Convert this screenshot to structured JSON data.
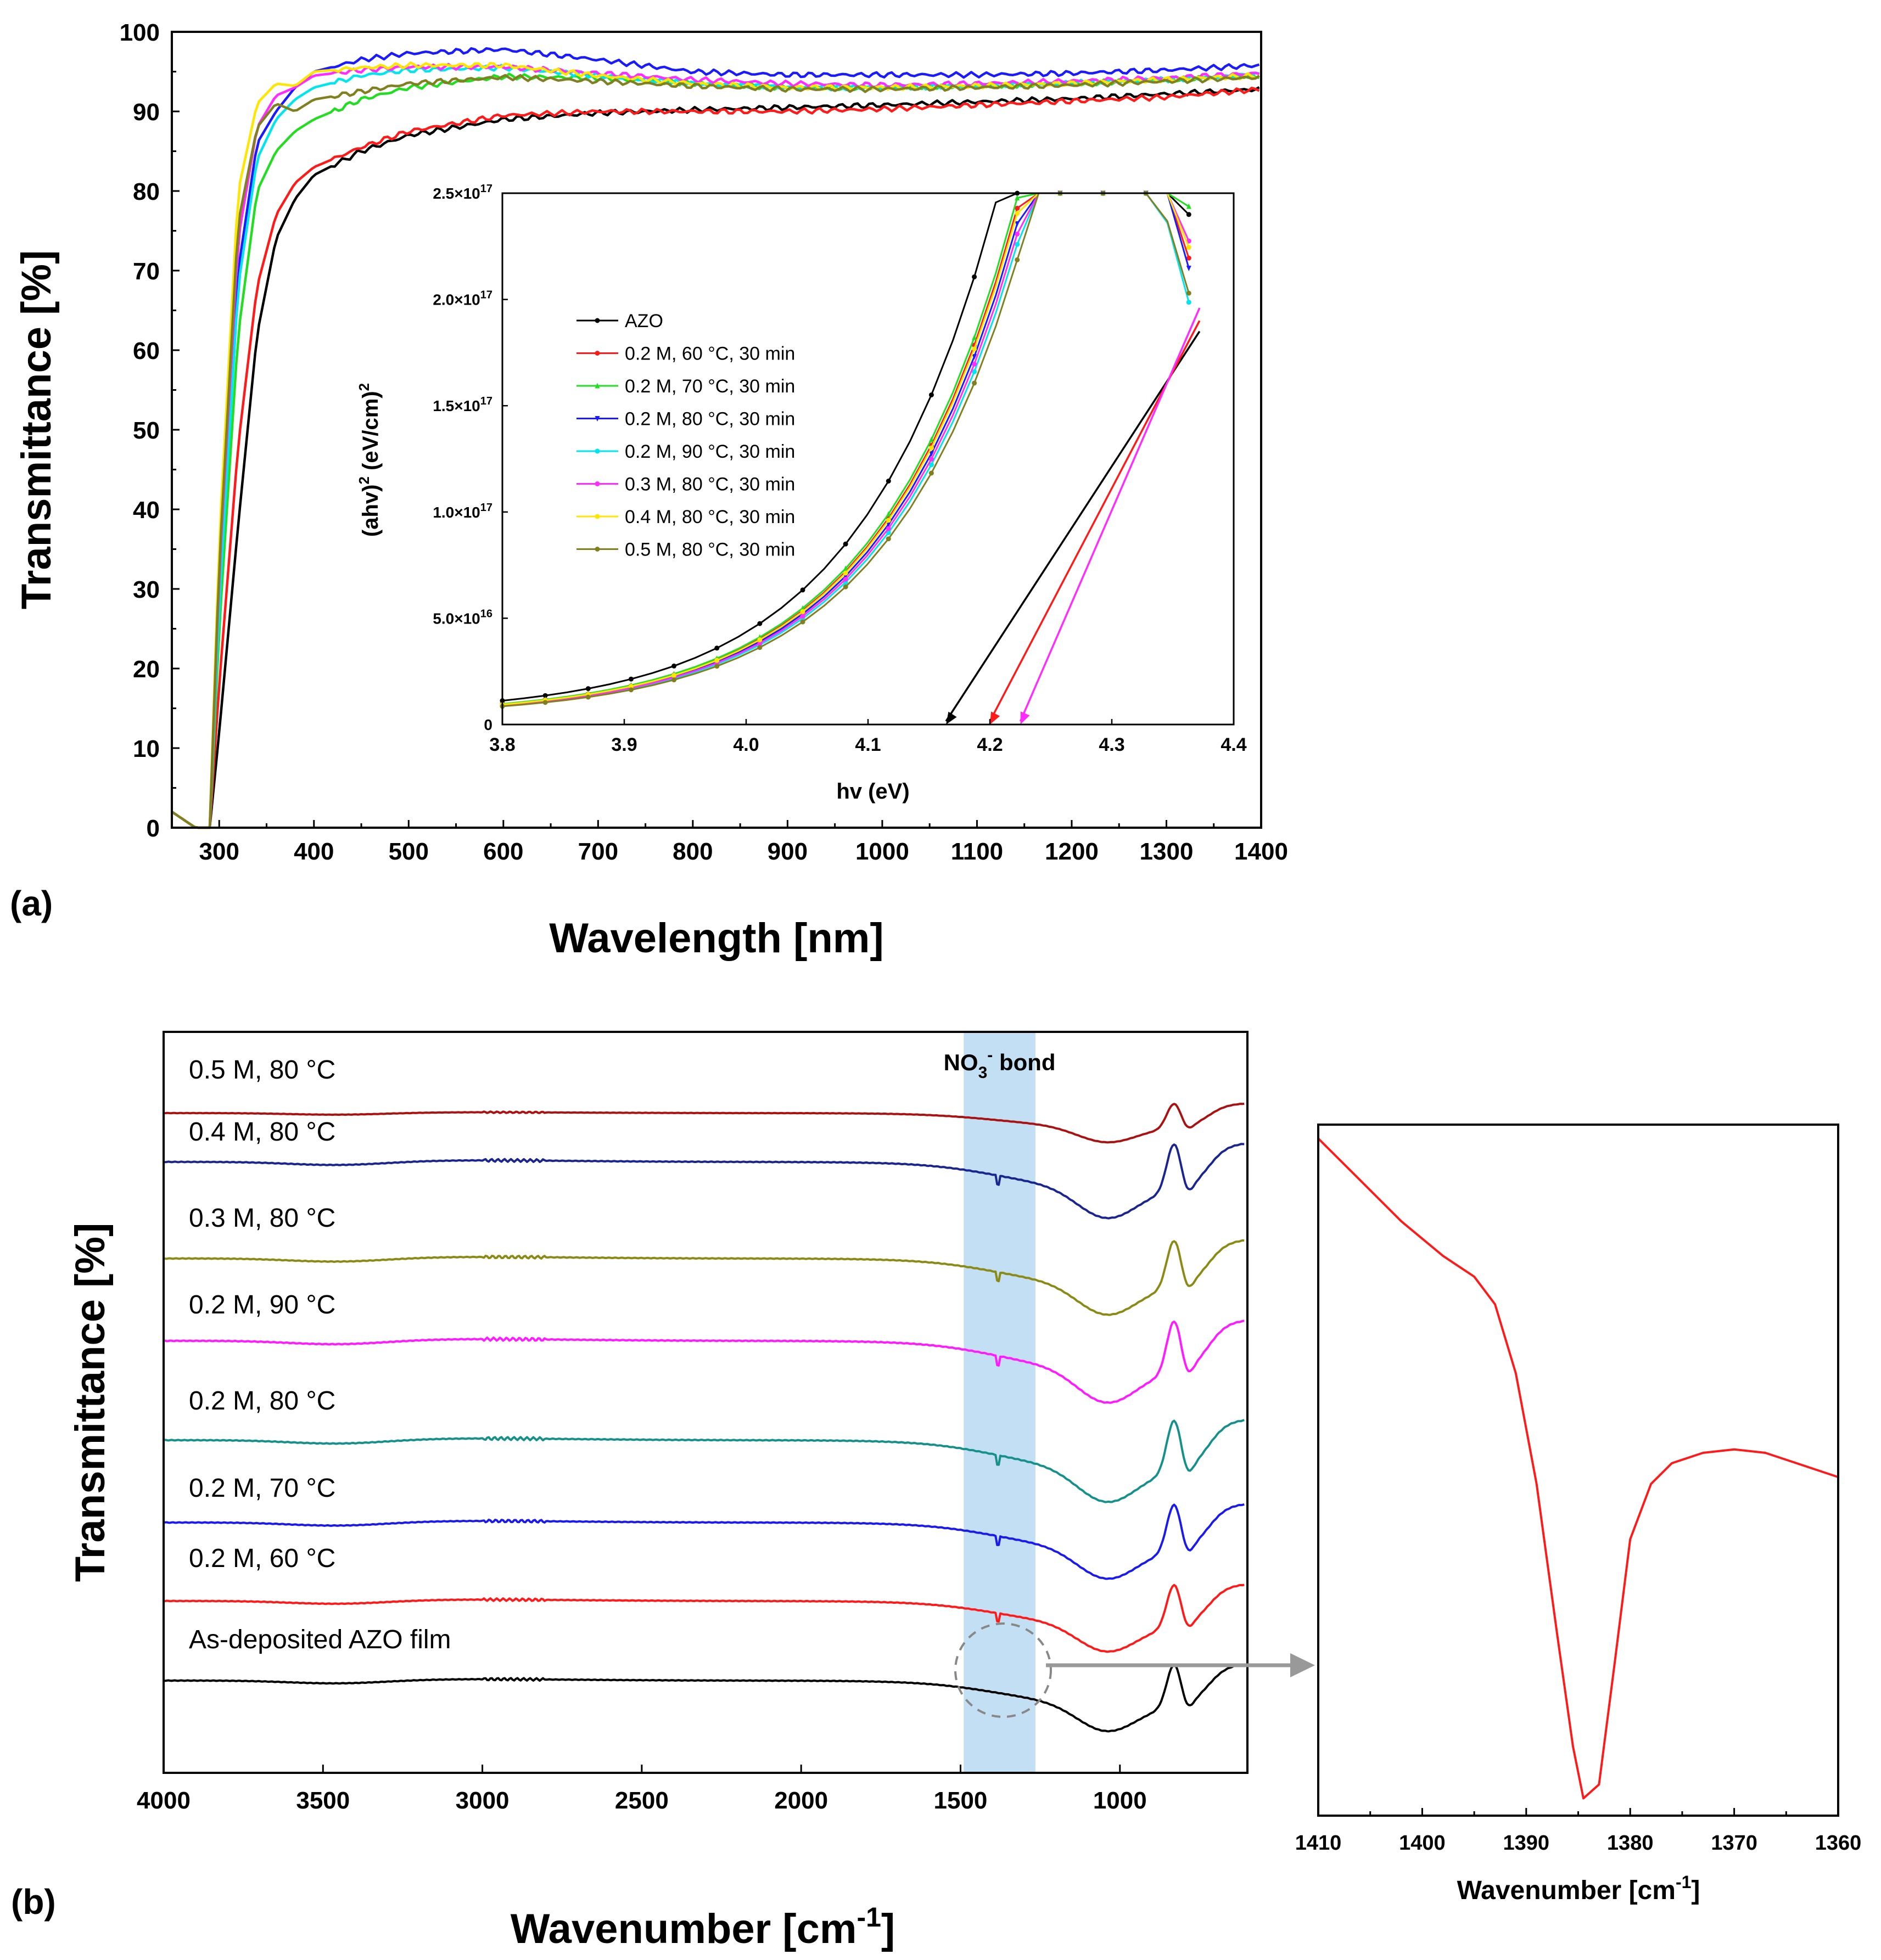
{
  "chart_data": [
    {
      "id": "a",
      "type": "line",
      "panel_label": "(a)",
      "xlabel": "Wavelength [nm]",
      "ylabel": "Transmittance [%]",
      "xlim": [
        250,
        1400
      ],
      "ylim": [
        0,
        100
      ],
      "xticks": [
        300,
        400,
        500,
        600,
        700,
        800,
        900,
        1000,
        1100,
        1200,
        1300,
        1400
      ],
      "yticks": [
        0,
        10,
        20,
        30,
        40,
        50,
        60,
        70,
        80,
        90,
        100
      ],
      "series": [
        {
          "name": "AZO",
          "color": "#000000",
          "points": [
            [
              250,
              2
            ],
            [
              275,
              0
            ],
            [
              290,
              0
            ],
            [
              300,
              12
            ],
            [
              320,
              38
            ],
            [
              340,
              62
            ],
            [
              360,
              74
            ],
            [
              380,
              79
            ],
            [
              400,
              82
            ],
            [
              450,
              85
            ],
            [
              500,
              87
            ],
            [
              600,
              89
            ],
            [
              700,
              89.8
            ],
            [
              800,
              90.2
            ],
            [
              900,
              90.5
            ],
            [
              1000,
              90.8
            ],
            [
              1100,
              91.2
            ],
            [
              1200,
              91.6
            ],
            [
              1300,
              92.2
            ],
            [
              1400,
              92.8
            ]
          ]
        },
        {
          "name": "0.2 M, 60 °C, 30 min",
          "color": "#ff1a1a",
          "points": [
            [
              250,
              2
            ],
            [
              275,
              0
            ],
            [
              290,
              0
            ],
            [
              300,
              18
            ],
            [
              320,
              48
            ],
            [
              340,
              68
            ],
            [
              360,
              77
            ],
            [
              380,
              81
            ],
            [
              400,
              83
            ],
            [
              450,
              85.5
            ],
            [
              500,
              87.5
            ],
            [
              600,
              89.5
            ],
            [
              700,
              90
            ],
            [
              800,
              90
            ],
            [
              900,
              90
            ],
            [
              1000,
              90.3
            ],
            [
              1100,
              90.8
            ],
            [
              1200,
              91.3
            ],
            [
              1300,
              91.8
            ],
            [
              1400,
              92.8
            ]
          ]
        },
        {
          "name": "0.2 M, 70 °C, 30 min",
          "color": "#22dd22",
          "points": [
            [
              250,
              2
            ],
            [
              275,
              0
            ],
            [
              290,
              0
            ],
            [
              300,
              25
            ],
            [
              320,
              62
            ],
            [
              340,
              80
            ],
            [
              360,
              85
            ],
            [
              380,
              87.5
            ],
            [
              400,
              89
            ],
            [
              450,
              91.5
            ],
            [
              500,
              93
            ],
            [
              600,
              94.4
            ],
            [
              700,
              94.2
            ],
            [
              800,
              93.5
            ],
            [
              900,
              93
            ],
            [
              1000,
              93
            ],
            [
              1100,
              93.2
            ],
            [
              1200,
              93.5
            ],
            [
              1300,
              94
            ],
            [
              1400,
              94.5
            ]
          ]
        },
        {
          "name": "0.2 M, 80 °C, 30 min",
          "color": "#1a1aff",
          "points": [
            [
              250,
              2
            ],
            [
              275,
              0
            ],
            [
              290,
              0
            ],
            [
              300,
              30
            ],
            [
              320,
              70
            ],
            [
              340,
              86
            ],
            [
              360,
              90
            ],
            [
              380,
              93
            ],
            [
              400,
              95
            ],
            [
              450,
              96.5
            ],
            [
              500,
              97.3
            ],
            [
              600,
              97.8
            ],
            [
              700,
              96.5
            ],
            [
              800,
              95
            ],
            [
              900,
              94.6
            ],
            [
              1000,
              94.6
            ],
            [
              1100,
              94.6
            ],
            [
              1200,
              94.8
            ],
            [
              1300,
              95.2
            ],
            [
              1400,
              95.8
            ]
          ]
        },
        {
          "name": "0.2 M, 90 °C, 30 min",
          "color": "#00e5ee",
          "points": [
            [
              250,
              2
            ],
            [
              275,
              0
            ],
            [
              290,
              0
            ],
            [
              300,
              28
            ],
            [
              320,
              68
            ],
            [
              340,
              84
            ],
            [
              360,
              89
            ],
            [
              380,
              91.5
            ],
            [
              400,
              93
            ],
            [
              450,
              94.5
            ],
            [
              500,
              95.2
            ],
            [
              600,
              95.5
            ],
            [
              700,
              94.5
            ],
            [
              800,
              93.5
            ],
            [
              900,
              93
            ],
            [
              1000,
              93
            ],
            [
              1100,
              93.2
            ],
            [
              1200,
              93.6
            ],
            [
              1300,
              94
            ],
            [
              1400,
              94.6
            ]
          ]
        },
        {
          "name": "0.3 M, 80 °C, 30 min",
          "color": "#ff2bff",
          "points": [
            [
              250,
              2
            ],
            [
              275,
              0
            ],
            [
              290,
              0
            ],
            [
              300,
              32
            ],
            [
              320,
              74
            ],
            [
              340,
              88
            ],
            [
              360,
              92
            ],
            [
              380,
              93
            ],
            [
              400,
              94.5
            ],
            [
              450,
              95.2
            ],
            [
              500,
              95.6
            ],
            [
              600,
              95.6
            ],
            [
              700,
              94.8
            ],
            [
              800,
              94
            ],
            [
              900,
              93.5
            ],
            [
              1000,
              93.3
            ],
            [
              1100,
              93.5
            ],
            [
              1200,
              93.8
            ],
            [
              1300,
              94.2
            ],
            [
              1400,
              94.8
            ]
          ]
        },
        {
          "name": "0.4 M, 80 °C, 30 min",
          "color": "#ffe600",
          "points": [
            [
              250,
              2
            ],
            [
              275,
              0
            ],
            [
              290,
              0
            ],
            [
              300,
              36
            ],
            [
              320,
              80
            ],
            [
              340,
              91
            ],
            [
              360,
              93.5
            ],
            [
              380,
              93.2
            ],
            [
              400,
              95
            ],
            [
              450,
              95.5
            ],
            [
              500,
              95.8
            ],
            [
              600,
              95.8
            ],
            [
              700,
              94.5
            ],
            [
              800,
              93.5
            ],
            [
              900,
              93
            ],
            [
              1000,
              93
            ],
            [
              1100,
              93.2
            ],
            [
              1200,
              93.5
            ],
            [
              1300,
              94
            ],
            [
              1400,
              94.5
            ]
          ]
        },
        {
          "name": "0.5 M, 80 °C, 30 min",
          "color": "#808020",
          "points": [
            [
              250,
              2
            ],
            [
              275,
              0
            ],
            [
              290,
              0
            ],
            [
              300,
              33
            ],
            [
              320,
              76
            ],
            [
              340,
              88
            ],
            [
              360,
              91
            ],
            [
              380,
              90
            ],
            [
              400,
              91.5
            ],
            [
              450,
              92.5
            ],
            [
              500,
              93.5
            ],
            [
              600,
              94.3
            ],
            [
              700,
              93.8
            ],
            [
              800,
              93.2
            ],
            [
              900,
              92.8
            ],
            [
              1000,
              92.8
            ],
            [
              1100,
              93
            ],
            [
              1200,
              93.3
            ],
            [
              1300,
              93.8
            ],
            [
              1400,
              94.3
            ]
          ]
        }
      ],
      "inset": {
        "type": "line",
        "xlabel": "hv (eV)",
        "ylabel": "(ahv)² (eV/cm)²",
        "ylabel_parts": [
          "(ahv)",
          "2",
          " (eV/cm)",
          "2"
        ],
        "xlim": [
          3.8,
          4.4
        ],
        "ylim": [
          0,
          2.5e+17
        ],
        "xticks": [
          "3.8",
          "3.9",
          "4.0",
          "4.1",
          "4.2",
          "4.3",
          "4.4"
        ],
        "yticks": [
          {
            "value": 0,
            "mantissa": "0",
            "exp": ""
          },
          {
            "value": 5e+16,
            "mantissa": "5.0×10",
            "exp": "16"
          },
          {
            "value": 1e+17,
            "mantissa": "1.0×10",
            "exp": "17"
          },
          {
            "value": 1.5e+17,
            "mantissa": "1.5×10",
            "exp": "17"
          },
          {
            "value": 2e+17,
            "mantissa": "2.0×10",
            "exp": "17"
          },
          {
            "value": 2.5e+17,
            "mantissa": "2.5×10",
            "exp": "17"
          }
        ],
        "curve_scale": [
          1.18,
          1.0,
          1.02,
          0.97,
          0.93,
          0.95,
          0.99,
          0.9
        ],
        "curve_end": [
          2.15e+17,
          2e+17,
          2.26e+17,
          1.96e+17,
          1.8e+17,
          2.11e+17,
          2.06e+17,
          1.86e+17
        ],
        "tangent_lines": [
          {
            "color": "#000000",
            "from": [
              4.372,
              1.85e+17
            ],
            "to": [
              4.164,
              0
            ]
          },
          {
            "color": "#ff1a1a",
            "from": [
              4.372,
              1.9e+17
            ],
            "to": [
              4.2,
              0
            ]
          },
          {
            "color": "#ff2bff",
            "from": [
              4.372,
              1.96e+17
            ],
            "to": [
              4.225,
              0
            ]
          }
        ]
      }
    },
    {
      "id": "b",
      "type": "line",
      "panel_label": "(b)",
      "xlabel": "Wavenumber [cm⁻¹]",
      "xlabel_parts": [
        "Wavenumber [cm",
        "-1",
        "]"
      ],
      "ylabel": "Transmittance [%]",
      "xlim": [
        4000,
        600
      ],
      "xticks": [
        4000,
        3500,
        3000,
        2500,
        2000,
        1500,
        1000
      ],
      "highlight_band": {
        "label": "NO₃⁻ bond",
        "label_parts": [
          "NO",
          "3",
          "-",
          " bond"
        ],
        "xrange": [
          1490,
          1265
        ],
        "color": "#c3dff3"
      },
      "series": [
        {
          "name": "0.5 M, 80 °C",
          "color": "#aa1212"
        },
        {
          "name": "0.4 M, 80 °C",
          "color": "#1a2590"
        },
        {
          "name": "0.3 M, 80 °C",
          "color": "#8c8a16"
        },
        {
          "name": "0.2 M, 90 °C",
          "color": "#ff1aff"
        },
        {
          "name": "0.2 M, 80 °C",
          "color": "#15908a"
        },
        {
          "name": "0.2 M, 70 °C",
          "color": "#1a1aee"
        },
        {
          "name": "0.2 M, 60 °C",
          "color": "#ff1a1a"
        },
        {
          "name": "As-deposited AZO film",
          "color": "#000000"
        }
      ]
    },
    {
      "id": "b-zoom",
      "type": "line",
      "xlabel": "Wavenumber [cm⁻¹]",
      "xlabel_parts": [
        "Wavenumber [cm",
        "-1",
        "]"
      ],
      "xlim": [
        1410,
        1360
      ],
      "xticks": [
        1410,
        1400,
        1390,
        1380,
        1370,
        1360
      ],
      "series": [
        {
          "name": "0.2 M, 60 °C",
          "color": "#ff1a1a",
          "points": [
            [
              1410,
              0.02
            ],
            [
              1406,
              0.08
            ],
            [
              1402,
              0.14
            ],
            [
              1398,
              0.19
            ],
            [
              1395,
              0.22
            ],
            [
              1393,
              0.26
            ],
            [
              1391,
              0.36
            ],
            [
              1389,
              0.52
            ],
            [
              1387,
              0.74
            ],
            [
              1385.5,
              0.9
            ],
            [
              1384.5,
              0.975
            ],
            [
              1383,
              0.955
            ],
            [
              1381.5,
              0.78
            ],
            [
              1380,
              0.6
            ],
            [
              1378,
              0.52
            ],
            [
              1376,
              0.49
            ],
            [
              1373,
              0.475
            ],
            [
              1370,
              0.47
            ],
            [
              1367,
              0.475
            ],
            [
              1364,
              0.49
            ],
            [
              1360,
              0.51
            ]
          ]
        }
      ]
    }
  ]
}
